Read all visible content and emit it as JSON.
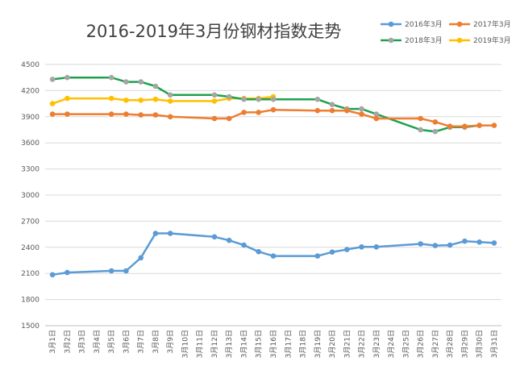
{
  "chart_data": {
    "type": "line",
    "title": "2016-2019年3月份钢材指数走势",
    "xlabel": "",
    "ylabel": "",
    "ylim": [
      1500,
      4500
    ],
    "yticks": [
      1500,
      1800,
      2100,
      2400,
      2700,
      3000,
      3300,
      3600,
      3900,
      4200,
      4500
    ],
    "grid": true,
    "legend_position": "top-right",
    "categories": [
      "3月1日",
      "3月2日",
      "3月3日",
      "3月4日",
      "3月5日",
      "3月6日",
      "3月7日",
      "3月8日",
      "3月9日",
      "3月10日",
      "3月11日",
      "3月12日",
      "3月13日",
      "3月14日",
      "3月15日",
      "3月16日",
      "3月17日",
      "3月18日",
      "3月19日",
      "3月20日",
      "3月21日",
      "3月22日",
      "3月23日",
      "3月24日",
      "3月25日",
      "3月26日",
      "3月27日",
      "3月28日",
      "3月29日",
      "3月30日",
      "3月31日"
    ],
    "series": [
      {
        "name": "2016年3月",
        "color": "#5B9BD5",
        "values": [
          2085,
          2110,
          null,
          null,
          2130,
          2130,
          2280,
          2560,
          2560,
          null,
          null,
          2520,
          2480,
          2425,
          2350,
          2300,
          null,
          null,
          2300,
          2345,
          2375,
          2405,
          2405,
          null,
          null,
          2440,
          2420,
          2425,
          2470,
          2460,
          2450
        ]
      },
      {
        "name": "2017年3月",
        "color": "#ED7D31",
        "values": [
          3930,
          3930,
          null,
          null,
          3930,
          3930,
          3920,
          3920,
          3900,
          null,
          null,
          3880,
          3880,
          3950,
          3950,
          3980,
          null,
          null,
          3970,
          3970,
          3970,
          3930,
          3880,
          null,
          null,
          3880,
          3840,
          3790,
          3790,
          3800,
          3800
        ]
      },
      {
        "name": "2018年3月",
        "color": "#1FA14C",
        "values": [
          4330,
          4350,
          null,
          null,
          4350,
          4300,
          4300,
          4250,
          4150,
          null,
          null,
          4150,
          4130,
          4100,
          4100,
          4100,
          null,
          null,
          4100,
          4040,
          3990,
          3990,
          3930,
          null,
          null,
          3750,
          3730,
          3780,
          3780,
          3800,
          null
        ]
      },
      {
        "name": "2019年3月",
        "color": "#FFC000",
        "values": [
          4050,
          4110,
          null,
          null,
          4110,
          4090,
          4090,
          4100,
          4080,
          null,
          null,
          4080,
          4110,
          4110,
          4110,
          4130,
          null,
          null,
          null,
          null,
          null,
          null,
          null,
          null,
          null,
          null,
          null,
          null,
          null,
          null,
          null
        ]
      }
    ]
  }
}
